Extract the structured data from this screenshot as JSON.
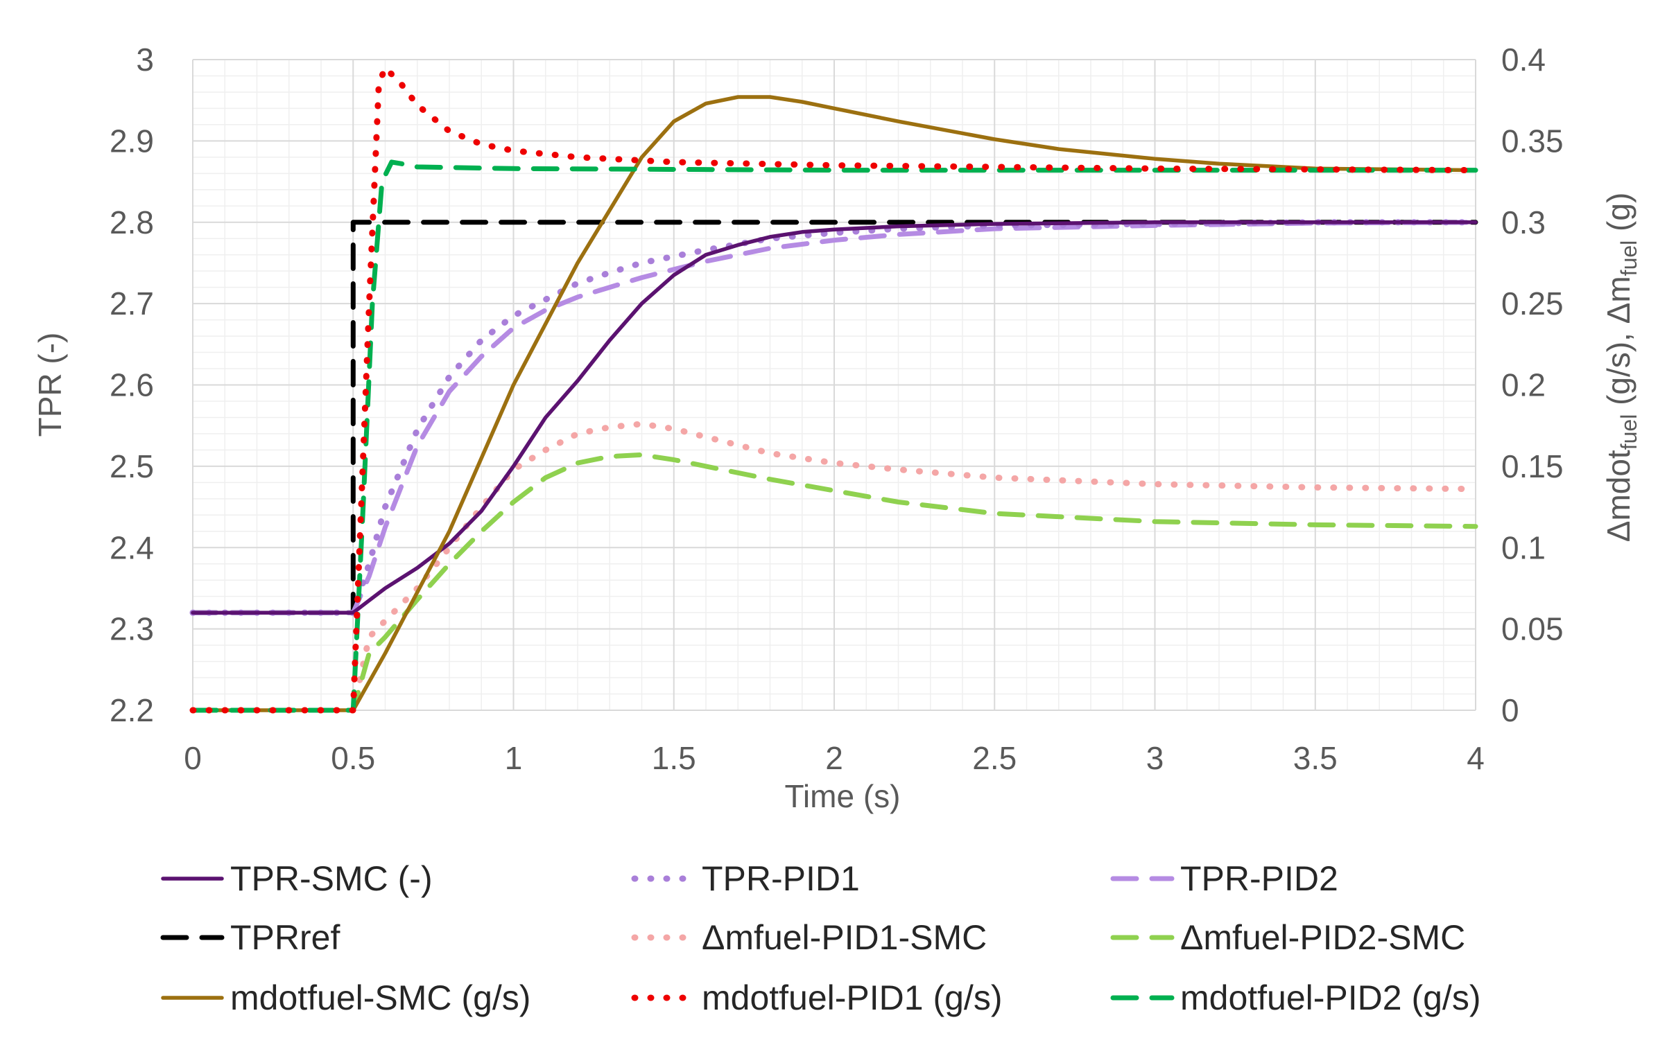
{
  "chart_data": {
    "type": "line",
    "title": "",
    "xlabel": "Time (s)",
    "ylabel_left": "TPR (-)",
    "ylabel_right": {
      "prefix": "Δmdot",
      "sub1": "fuel",
      "middle": " (g/s),  Δm",
      "sub2": "fuel",
      "suffix": " (g)"
    },
    "xlim": [
      0,
      4
    ],
    "ylim_left": [
      2.2,
      3.0
    ],
    "ylim_right": [
      0,
      0.4
    ],
    "x_ticks": [
      "0",
      "0.5",
      "1",
      "1.5",
      "2",
      "2.5",
      "3",
      "3.5",
      "4"
    ],
    "y_left_ticks": [
      "2.2",
      "2.3",
      "2.4",
      "2.5",
      "2.6",
      "2.7",
      "2.8",
      "2.9",
      "3"
    ],
    "y_right_ticks": [
      "0",
      "0.05",
      "0.1",
      "0.15",
      "0.2",
      "0.25",
      "0.3",
      "0.35",
      "0.4"
    ],
    "grid": true,
    "legend_position": "bottom",
    "series": [
      {
        "name": "TPR-SMC (-)",
        "axis": "left",
        "color": "#5b1270",
        "style": "solid",
        "points": [
          [
            0,
            2.32
          ],
          [
            0.5,
            2.32
          ],
          [
            0.55,
            2.335
          ],
          [
            0.6,
            2.35
          ],
          [
            0.7,
            2.375
          ],
          [
            0.8,
            2.405
          ],
          [
            0.9,
            2.445
          ],
          [
            1.0,
            2.5
          ],
          [
            1.1,
            2.56
          ],
          [
            1.2,
            2.605
          ],
          [
            1.3,
            2.655
          ],
          [
            1.4,
            2.7
          ],
          [
            1.5,
            2.735
          ],
          [
            1.6,
            2.76
          ],
          [
            1.7,
            2.772
          ],
          [
            1.8,
            2.782
          ],
          [
            1.9,
            2.788
          ],
          [
            2.0,
            2.791
          ],
          [
            2.2,
            2.795
          ],
          [
            2.5,
            2.798
          ],
          [
            3.0,
            2.8
          ],
          [
            4.0,
            2.8
          ]
        ]
      },
      {
        "name": "TPR-PID1",
        "axis": "left",
        "color": "#a97fd9",
        "style": "dotted",
        "points": [
          [
            0,
            2.32
          ],
          [
            0.5,
            2.32
          ],
          [
            0.55,
            2.38
          ],
          [
            0.6,
            2.45
          ],
          [
            0.7,
            2.545
          ],
          [
            0.8,
            2.61
          ],
          [
            0.9,
            2.655
          ],
          [
            1.0,
            2.685
          ],
          [
            1.1,
            2.705
          ],
          [
            1.2,
            2.725
          ],
          [
            1.3,
            2.738
          ],
          [
            1.4,
            2.75
          ],
          [
            1.5,
            2.758
          ],
          [
            1.6,
            2.766
          ],
          [
            1.8,
            2.78
          ],
          [
            2.0,
            2.787
          ],
          [
            2.2,
            2.792
          ],
          [
            2.5,
            2.796
          ],
          [
            3.0,
            2.798
          ],
          [
            3.5,
            2.8
          ],
          [
            4.0,
            2.8
          ]
        ]
      },
      {
        "name": "TPR-PID2",
        "axis": "left",
        "color": "#b58be3",
        "style": "dash",
        "points": [
          [
            0,
            2.32
          ],
          [
            0.5,
            2.32
          ],
          [
            0.55,
            2.365
          ],
          [
            0.6,
            2.425
          ],
          [
            0.7,
            2.525
          ],
          [
            0.8,
            2.592
          ],
          [
            0.9,
            2.635
          ],
          [
            1.0,
            2.67
          ],
          [
            1.1,
            2.692
          ],
          [
            1.2,
            2.708
          ],
          [
            1.3,
            2.72
          ],
          [
            1.4,
            2.732
          ],
          [
            1.5,
            2.742
          ],
          [
            1.6,
            2.752
          ],
          [
            1.8,
            2.768
          ],
          [
            2.0,
            2.778
          ],
          [
            2.2,
            2.785
          ],
          [
            2.5,
            2.792
          ],
          [
            3.0,
            2.796
          ],
          [
            3.5,
            2.799
          ],
          [
            4.0,
            2.8
          ]
        ]
      },
      {
        "name": "TPRref",
        "axis": "left",
        "color": "#000000",
        "style": "dash",
        "points": [
          [
            0,
            2.32
          ],
          [
            0.5,
            2.32
          ],
          [
            0.5,
            2.8
          ],
          [
            4.0,
            2.8
          ]
        ]
      },
      {
        "name": "Δmfuel-PID1-SMC",
        "axis": "right",
        "color": "#f4a6a6",
        "style": "dotted",
        "points": [
          [
            0,
            0
          ],
          [
            0.5,
            0
          ],
          [
            0.55,
            0.045
          ],
          [
            0.6,
            0.055
          ],
          [
            0.7,
            0.075
          ],
          [
            0.8,
            0.1
          ],
          [
            0.9,
            0.125
          ],
          [
            1.0,
            0.148
          ],
          [
            1.1,
            0.16
          ],
          [
            1.2,
            0.17
          ],
          [
            1.3,
            0.174
          ],
          [
            1.4,
            0.176
          ],
          [
            1.5,
            0.173
          ],
          [
            1.6,
            0.168
          ],
          [
            1.8,
            0.158
          ],
          [
            2.0,
            0.152
          ],
          [
            2.2,
            0.148
          ],
          [
            2.5,
            0.143
          ],
          [
            3.0,
            0.139
          ],
          [
            3.5,
            0.137
          ],
          [
            4.0,
            0.136
          ]
        ]
      },
      {
        "name": "Δmfuel-PID2-SMC",
        "axis": "right",
        "color": "#8fd14f",
        "style": "dash",
        "points": [
          [
            0,
            0
          ],
          [
            0.5,
            0
          ],
          [
            0.55,
            0.035
          ],
          [
            0.6,
            0.045
          ],
          [
            0.7,
            0.068
          ],
          [
            0.8,
            0.09
          ],
          [
            0.9,
            0.11
          ],
          [
            1.0,
            0.128
          ],
          [
            1.1,
            0.143
          ],
          [
            1.2,
            0.152
          ],
          [
            1.3,
            0.156
          ],
          [
            1.4,
            0.157
          ],
          [
            1.5,
            0.154
          ],
          [
            1.6,
            0.15
          ],
          [
            1.8,
            0.142
          ],
          [
            2.0,
            0.135
          ],
          [
            2.2,
            0.128
          ],
          [
            2.5,
            0.121
          ],
          [
            3.0,
            0.116
          ],
          [
            3.5,
            0.114
          ],
          [
            4.0,
            0.113
          ]
        ]
      },
      {
        "name": "mdotfuel-SMC (g/s)",
        "axis": "right",
        "color": "#9c7010",
        "style": "solid",
        "points": [
          [
            0,
            0
          ],
          [
            0.5,
            0
          ],
          [
            0.6,
            0.035
          ],
          [
            0.8,
            0.11
          ],
          [
            1.0,
            0.2
          ],
          [
            1.2,
            0.275
          ],
          [
            1.4,
            0.34
          ],
          [
            1.5,
            0.362
          ],
          [
            1.6,
            0.373
          ],
          [
            1.7,
            0.377
          ],
          [
            1.8,
            0.377
          ],
          [
            1.9,
            0.374
          ],
          [
            2.0,
            0.37
          ],
          [
            2.2,
            0.362
          ],
          [
            2.5,
            0.351
          ],
          [
            2.7,
            0.345
          ],
          [
            3.0,
            0.339
          ],
          [
            3.2,
            0.336
          ],
          [
            3.5,
            0.333
          ],
          [
            4.0,
            0.332
          ]
        ]
      },
      {
        "name": "mdotfuel-PID1 (g/s)",
        "axis": "right",
        "color": "#ee0000",
        "style": "dotted",
        "points": [
          [
            0,
            0
          ],
          [
            0.5,
            0
          ],
          [
            0.52,
            0.1
          ],
          [
            0.55,
            0.25
          ],
          [
            0.58,
            0.385
          ],
          [
            0.6,
            0.395
          ],
          [
            0.65,
            0.385
          ],
          [
            0.7,
            0.372
          ],
          [
            0.8,
            0.356
          ],
          [
            0.9,
            0.348
          ],
          [
            1.0,
            0.344
          ],
          [
            1.2,
            0.34
          ],
          [
            1.5,
            0.337
          ],
          [
            2.0,
            0.335
          ],
          [
            2.5,
            0.334
          ],
          [
            3.0,
            0.333
          ],
          [
            4.0,
            0.332
          ]
        ]
      },
      {
        "name": "mdotfuel-PID2 (g/s)",
        "axis": "right",
        "color": "#00b050",
        "style": "dash",
        "points": [
          [
            0,
            0
          ],
          [
            0.5,
            0
          ],
          [
            0.53,
            0.12
          ],
          [
            0.56,
            0.25
          ],
          [
            0.59,
            0.325
          ],
          [
            0.62,
            0.337
          ],
          [
            0.65,
            0.336
          ],
          [
            0.7,
            0.334
          ],
          [
            1.0,
            0.333
          ],
          [
            2.0,
            0.332
          ],
          [
            4.0,
            0.332
          ]
        ]
      }
    ]
  }
}
